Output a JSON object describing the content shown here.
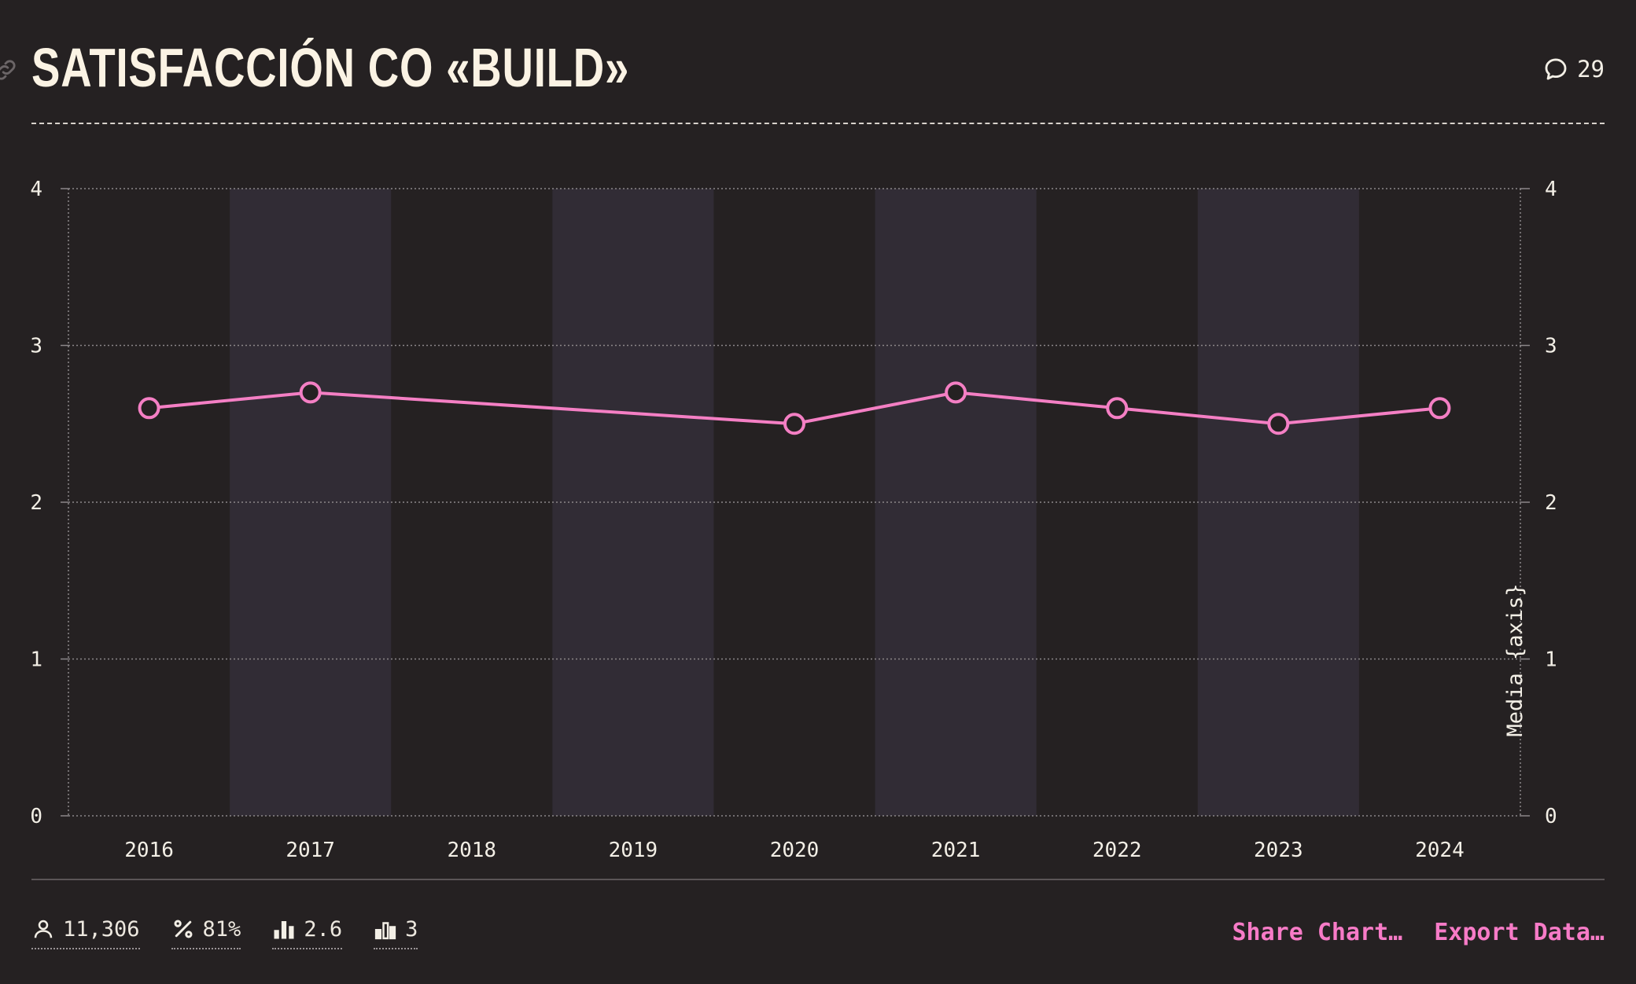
{
  "header": {
    "title": "SATISFACCIÓN CO «BUILD»",
    "comment_count": "29",
    "icons": [
      "link-icon",
      "comment-icon"
    ]
  },
  "chart_data": {
    "type": "line",
    "title": "SATISFACCIÓN CO «BUILD»",
    "categories": [
      "2016",
      "2017",
      "2018",
      "2019",
      "2020",
      "2021",
      "2022",
      "2023",
      "2024"
    ],
    "series": [
      {
        "values": [
          2.6,
          2.7,
          null,
          null,
          2.5,
          2.7,
          2.6,
          2.5,
          2.6
        ]
      }
    ],
    "y_ticks": [
      "0",
      "1",
      "2",
      "3",
      "4"
    ],
    "ylim": [
      0,
      4
    ],
    "y2label": "Media {axis}",
    "grid": true,
    "alternating_bands": true,
    "colors": {
      "line": "#f47fc4",
      "marker_fill": "#252122",
      "band": "#312c35",
      "grid": "#8c8789",
      "background": "#252122"
    }
  },
  "footer": {
    "stats": [
      {
        "icon": "person-icon",
        "value": "11,306"
      },
      {
        "icon": "percent-icon",
        "value": "81%"
      },
      {
        "icon": "bar-chart-icon",
        "value": "2.6"
      },
      {
        "icon": "bar-chart-outline-icon",
        "value": "3"
      }
    ],
    "actions": {
      "share": "Share Chart…",
      "export": "Export Data…"
    }
  }
}
